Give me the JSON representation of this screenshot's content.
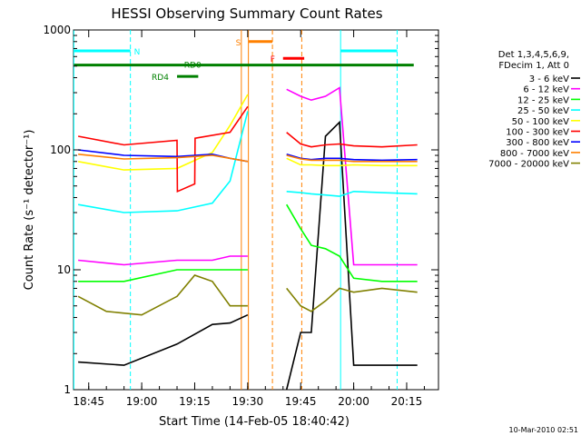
{
  "chart_data": {
    "type": "line",
    "title": "HESSI Observing Summary Count Rates",
    "xlabel": "Start Time (14-Feb-05 18:40:42)",
    "ylabel": "Count Rate (s⁻¹ detector⁻¹)",
    "x_unit": "minutes of day (UT)",
    "xlim": [
      1120.7,
      1224.0
    ],
    "ylim": [
      1,
      1000
    ],
    "yscale": "log",
    "x_ticks": [
      {
        "value": 1125,
        "label": "18:45"
      },
      {
        "value": 1140,
        "label": "19:00"
      },
      {
        "value": 1155,
        "label": "19:15"
      },
      {
        "value": 1170,
        "label": "19:30"
      },
      {
        "value": 1185,
        "label": "19:45"
      },
      {
        "value": 1200,
        "label": "20:00"
      },
      {
        "value": 1215,
        "label": "20:15"
      }
    ],
    "y_ticks": [
      {
        "value": 1,
        "label": "1"
      },
      {
        "value": 10,
        "label": "10"
      },
      {
        "value": 100,
        "label": "100"
      },
      {
        "value": 1000,
        "label": "1000"
      }
    ],
    "grid": false,
    "legend_position": "right",
    "legend_header": [
      "Det 1,3,4,5,6,9,",
      "FDecim 1, Att 0"
    ],
    "series": [
      {
        "name": "3 - 6 keV",
        "color": "#000000",
        "x": [
          1122,
          1135,
          1150,
          1160,
          1165,
          1170,
          1178,
          1181,
          1185,
          1188,
          1192,
          1196,
          1200,
          1208,
          1218
        ],
        "y": [
          1.7,
          1.6,
          2.4,
          3.5,
          3.6,
          4.2,
          null,
          1.0,
          3.0,
          3.0,
          130,
          170,
          1.6,
          1.6,
          1.6
        ]
      },
      {
        "name": "6 - 12 keV",
        "color": "#ff00ff",
        "x": [
          1122,
          1135,
          1150,
          1160,
          1165,
          1170,
          1178,
          1181,
          1185,
          1188,
          1192,
          1196,
          1200,
          1208,
          1218
        ],
        "y": [
          12,
          11,
          12,
          12,
          13,
          13,
          null,
          320,
          280,
          260,
          280,
          330,
          11,
          11,
          11
        ]
      },
      {
        "name": "12 - 25 keV",
        "color": "#00ff00",
        "x": [
          1122,
          1135,
          1150,
          1160,
          1165,
          1170,
          1178,
          1181,
          1185,
          1188,
          1192,
          1196,
          1200,
          1208,
          1218
        ],
        "y": [
          8,
          8,
          10,
          10,
          10,
          10,
          null,
          35,
          22,
          16,
          15,
          13,
          8.5,
          8,
          8
        ]
      },
      {
        "name": "25 - 50 keV",
        "color": "#00ffff",
        "x": [
          1122,
          1135,
          1150,
          1160,
          1165,
          1170,
          1178,
          1181,
          1185,
          1188,
          1192,
          1196,
          1200,
          1208,
          1218
        ],
        "y": [
          35,
          30,
          31,
          36,
          55,
          210,
          null,
          45,
          44,
          43,
          42,
          41,
          45,
          44,
          43
        ]
      },
      {
        "name": "50 - 100 keV",
        "color": "#ffff00",
        "x": [
          1122,
          1135,
          1150,
          1160,
          1165,
          1170,
          1178,
          1181,
          1185,
          1188,
          1192,
          1196,
          1200,
          1208,
          1218
        ],
        "y": [
          80,
          68,
          70,
          95,
          160,
          290,
          null,
          85,
          75,
          75,
          74,
          74,
          75,
          74,
          74
        ]
      },
      {
        "name": "100 - 300 keV",
        "color": "#ff0000",
        "x": [
          1122,
          1135,
          1150,
          1150.1,
          1155,
          1155.1,
          1165,
          1170,
          1178,
          1181,
          1185,
          1188,
          1192,
          1196,
          1200,
          1208,
          1218
        ],
        "y": [
          130,
          110,
          120,
          45,
          52,
          125,
          140,
          230,
          null,
          140,
          112,
          106,
          110,
          112,
          108,
          106,
          110
        ]
      },
      {
        "name": "300 - 800 keV",
        "color": "#0000ff",
        "x": [
          1122,
          1135,
          1150,
          1160,
          1165,
          1170,
          1178,
          1181,
          1185,
          1188,
          1192,
          1196,
          1200,
          1208,
          1218
        ],
        "y": [
          100,
          90,
          88,
          92,
          85,
          80,
          null,
          92,
          85,
          83,
          85,
          85,
          83,
          82,
          83
        ]
      },
      {
        "name": "800 - 7000 keV",
        "color": "#ff8000",
        "x": [
          1122,
          1135,
          1150,
          1160,
          1165,
          1170,
          1178,
          1181,
          1185,
          1188,
          1192,
          1196,
          1200,
          1208,
          1218
        ],
        "y": [
          92,
          84,
          86,
          90,
          85,
          80,
          null,
          90,
          84,
          82,
          82,
          82,
          80,
          80,
          80
        ]
      },
      {
        "name": "7000 - 20000 keV",
        "color": "#808000",
        "x": [
          1122,
          1130,
          1140,
          1150,
          1155,
          1160,
          1165,
          1170,
          1178,
          1181,
          1185,
          1188,
          1192,
          1196,
          1200,
          1208,
          1218
        ],
        "y": [
          6,
          4.5,
          4.2,
          6,
          9,
          8,
          5,
          5,
          null,
          7,
          5,
          4.5,
          5.5,
          7,
          6.5,
          7,
          6.5
        ]
      }
    ],
    "event_lines": [
      {
        "x": 1120.8,
        "color": "#00ffff",
        "style": "solid"
      },
      {
        "x": 1136.8,
        "color": "#00ffff",
        "style": "dashed"
      },
      {
        "x": 1168.2,
        "color": "#ff8000",
        "style": "solid"
      },
      {
        "x": 1170.2,
        "color": "#ff8000",
        "style": "solid"
      },
      {
        "x": 1177.0,
        "color": "#ff8000",
        "style": "dashed"
      },
      {
        "x": 1185.3,
        "color": "#ff8000",
        "style": "dashed"
      },
      {
        "x": 1196.3,
        "color": "#00ffff",
        "style": "solid"
      },
      {
        "x": 1212.3,
        "color": "#00ffff",
        "style": "dashed"
      }
    ],
    "state_bars": [
      {
        "label": "N",
        "color": "#00ffff",
        "y": 670,
        "segments": [
          [
            1120.8,
            1136.8
          ],
          [
            1196.3,
            1212.3
          ]
        ]
      },
      {
        "label": "RD0",
        "color": "#008000",
        "y": 510,
        "segments": [
          [
            1120.8,
            1217.0
          ]
        ]
      },
      {
        "label": "RD4",
        "color": "#008000",
        "y": 410,
        "segments": [
          [
            1150.0,
            1156.0
          ]
        ]
      },
      {
        "label": "S",
        "color": "#ff8000",
        "y": 800,
        "segments": [
          [
            1170.2,
            1177.0
          ]
        ]
      },
      {
        "label": "F",
        "color": "#ff0000",
        "y": 580,
        "segments": [
          [
            1180.0,
            1186.0
          ]
        ]
      }
    ],
    "timestamp": "10-Mar-2010 02:51"
  }
}
